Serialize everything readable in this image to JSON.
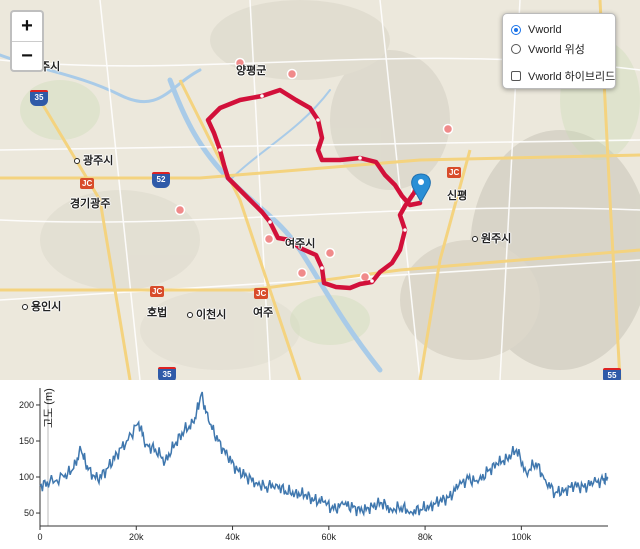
{
  "map": {
    "zoom_in": "+",
    "zoom_out": "−",
    "layers": {
      "base": "Vworld",
      "satellite": "Vworld 위성",
      "hybrid": "Vworld 하이브리드",
      "selected": "base",
      "hybrid_checked": false
    },
    "labels": {
      "yangpyeong": "양평군",
      "gwangju": "광주시",
      "gyeonggi_gwangju": "경기광주",
      "sinpyeong": "신평",
      "wonju": "원주시",
      "yongin": "용인시",
      "hobeop": "호법",
      "icheon": "이천시",
      "yeoju_1": "여주시",
      "yeoju_2": "여주",
      "namyangju_partial": "주시"
    },
    "junctions": [
      "JC",
      "JC",
      "JC",
      "JC"
    ],
    "route_shields": [
      "35",
      "52",
      "35",
      "55"
    ],
    "colors": {
      "route": "#d2103a",
      "marker": "#2a8fd6",
      "poi": "#f08a8a",
      "water": "#a9cbe8",
      "expressway": "#f4d37f"
    }
  },
  "elevation": {
    "ylabel": "고도 (m)",
    "yticks": [
      50,
      100,
      150,
      200
    ],
    "xticks": [
      "0",
      "20k",
      "40k",
      "60k",
      "80k",
      "100k"
    ],
    "xmax": 118000,
    "ylim": [
      32,
      218
    ],
    "line_color": "#3f77ae"
  },
  "chart_data": {
    "type": "line",
    "xlabel": "",
    "ylabel": "고도 (m)",
    "xlim": [
      0,
      118000
    ],
    "ylim": [
      32,
      218
    ],
    "x": [
      0,
      2000,
      5000,
      7000,
      8500,
      10000,
      12000,
      14000,
      16000,
      18000,
      20500,
      22000,
      24000,
      26000,
      28000,
      30000,
      32000,
      33500,
      35000,
      37000,
      39000,
      41000,
      43000,
      45000,
      47000,
      49000,
      51000,
      53000,
      55000,
      57000,
      59000,
      61000,
      63000,
      65000,
      67000,
      69000,
      71000,
      73000,
      75000,
      77000,
      79000,
      81000,
      83000,
      85000,
      87000,
      89000,
      91000,
      93000,
      95000,
      97000,
      99000,
      101000,
      103000,
      105000,
      107000,
      109000,
      111000,
      113000,
      115000,
      117000,
      118000
    ],
    "y": [
      88,
      92,
      100,
      112,
      138,
      110,
      96,
      112,
      132,
      150,
      176,
      145,
      138,
      122,
      145,
      165,
      175,
      215,
      178,
      150,
      128,
      110,
      100,
      92,
      86,
      90,
      80,
      78,
      75,
      68,
      65,
      55,
      62,
      58,
      52,
      60,
      64,
      55,
      58,
      52,
      55,
      60,
      66,
      72,
      88,
      98,
      92,
      108,
      118,
      126,
      138,
      106,
      120,
      96,
      78,
      82,
      88,
      86,
      92,
      95,
      98
    ]
  }
}
